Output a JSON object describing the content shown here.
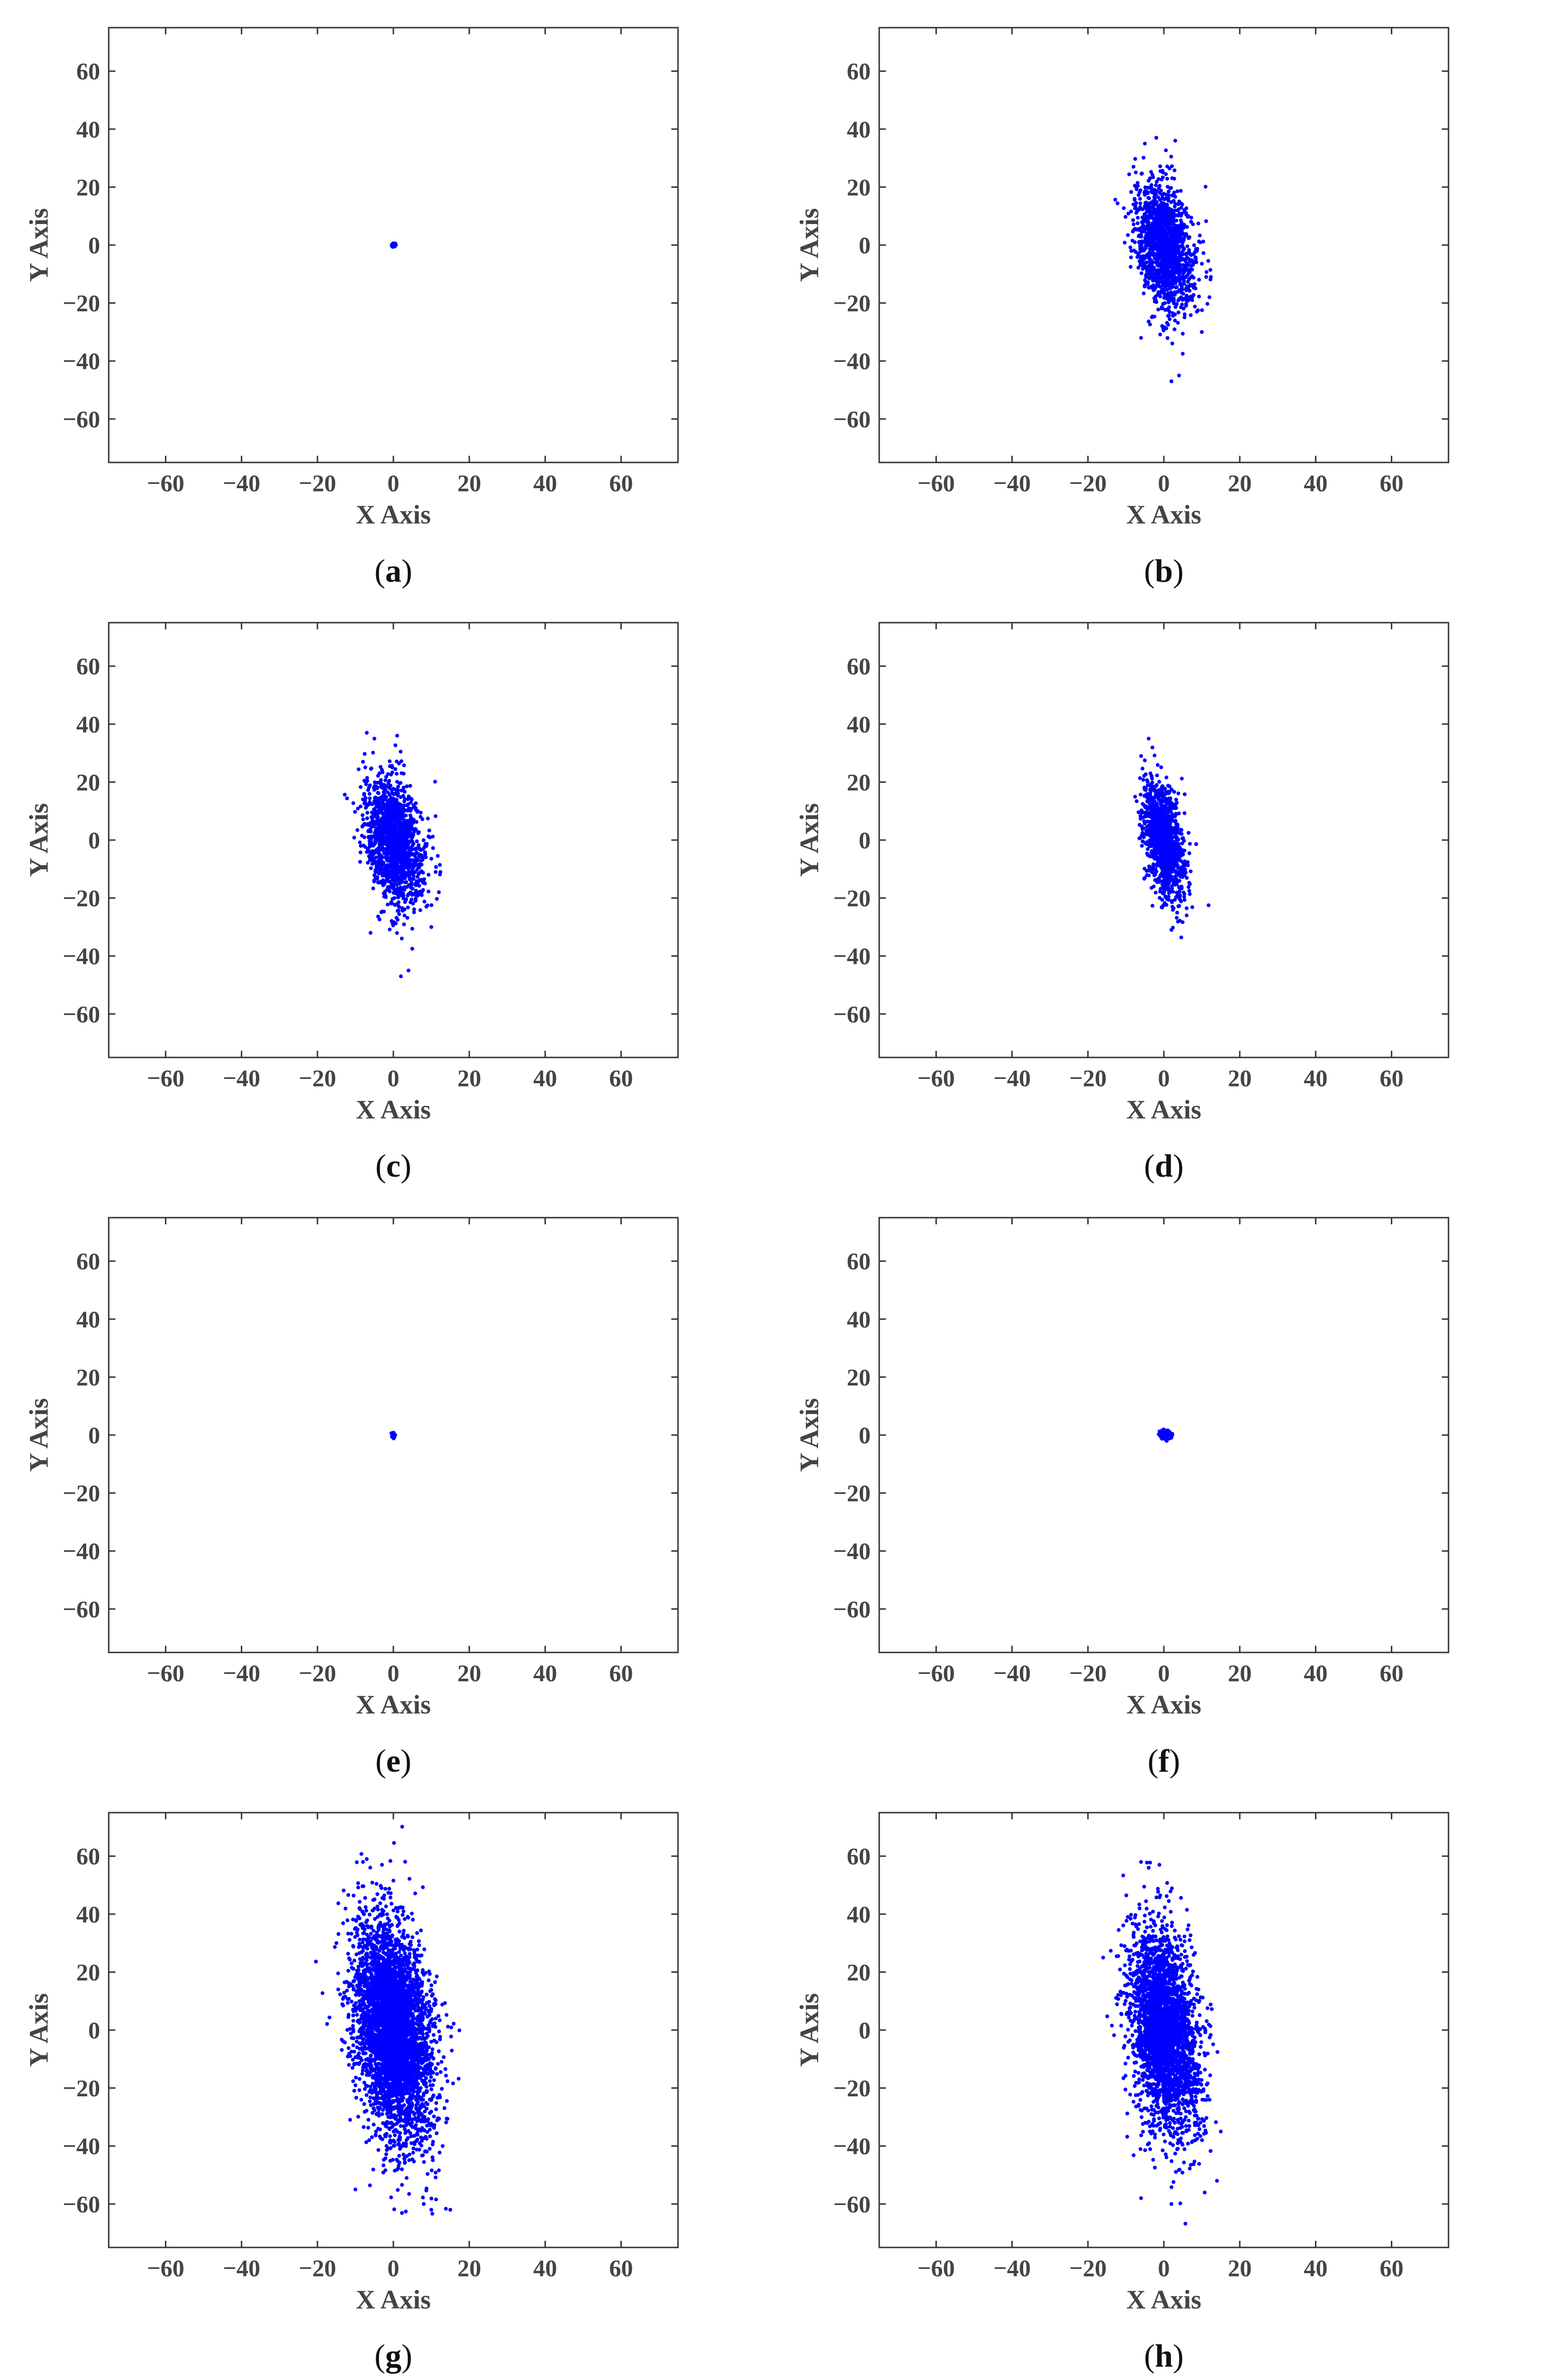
{
  "figure": {
    "marker_color": "#0000ff",
    "axis_color": "#333333",
    "label_color": "#444444"
  },
  "chart_data": [
    {
      "id": "a",
      "caption": "(a)",
      "type": "scatter",
      "xlabel": "X Axis",
      "ylabel": "Y Axis",
      "xlim": [
        -75,
        75
      ],
      "ylim": [
        -75,
        75
      ],
      "xticks": [
        -60,
        -40,
        -20,
        0,
        20,
        40,
        60
      ],
      "yticks": [
        -60,
        -40,
        -20,
        0,
        20,
        40,
        60
      ],
      "cloud": {
        "points": 80,
        "sd_x": 0.25,
        "sd_y": 0.25,
        "corr": 0.0,
        "center": [
          0,
          0
        ],
        "seed": 11
      },
      "outliers": []
    },
    {
      "id": "b",
      "caption": "(b)",
      "type": "scatter",
      "xlabel": "X Axis",
      "ylabel": "Y Axis",
      "xlim": [
        -75,
        75
      ],
      "ylim": [
        -75,
        75
      ],
      "xticks": [
        -60,
        -40,
        -20,
        0,
        20,
        40,
        60
      ],
      "yticks": [
        -60,
        -40,
        -20,
        0,
        20,
        40,
        60
      ],
      "cloud": {
        "points": 1500,
        "sd_x": 3.8,
        "sd_y": 11,
        "corr": -0.3,
        "center": [
          0,
          0
        ],
        "seed": 21
      },
      "outliers": [
        [
          -2,
          37
        ],
        [
          -5,
          35
        ],
        [
          3,
          36
        ],
        [
          -8,
          27
        ],
        [
          12,
          -18
        ],
        [
          2,
          -47
        ],
        [
          4,
          -45
        ],
        [
          -6,
          -32
        ],
        [
          10,
          -30
        ]
      ]
    },
    {
      "id": "c",
      "caption": "(c)",
      "type": "scatter",
      "xlabel": "X Axis",
      "ylabel": "Y Axis",
      "xlim": [
        -75,
        75
      ],
      "ylim": [
        -75,
        75
      ],
      "xticks": [
        -60,
        -40,
        -20,
        0,
        20,
        40,
        60
      ],
      "yticks": [
        -60,
        -40,
        -20,
        0,
        20,
        40,
        60
      ],
      "cloud": {
        "points": 1500,
        "sd_x": 3.8,
        "sd_y": 11,
        "corr": -0.3,
        "center": [
          0,
          0
        ],
        "seed": 21
      },
      "outliers": [
        [
          -7,
          37
        ],
        [
          -5,
          35
        ],
        [
          1,
          36
        ],
        [
          -8,
          27
        ],
        [
          12,
          -18
        ],
        [
          2,
          -47
        ],
        [
          4,
          -45
        ],
        [
          -6,
          -32
        ],
        [
          10,
          -30
        ]
      ]
    },
    {
      "id": "d",
      "caption": "(d)",
      "type": "scatter",
      "xlabel": "X Axis",
      "ylabel": "Y Axis",
      "xlim": [
        -75,
        75
      ],
      "ylim": [
        -75,
        75
      ],
      "xticks": [
        -60,
        -40,
        -20,
        0,
        20,
        40,
        60
      ],
      "yticks": [
        -60,
        -40,
        -20,
        0,
        20,
        40,
        60
      ],
      "cloud": {
        "points": 1300,
        "sd_x": 2.6,
        "sd_y": 10,
        "corr": -0.45,
        "center": [
          0,
          0
        ],
        "seed": 31
      },
      "outliers": [
        [
          -4,
          35
        ],
        [
          -6,
          29
        ],
        [
          2,
          -31
        ],
        [
          6,
          -26
        ]
      ]
    },
    {
      "id": "e",
      "caption": "(e)",
      "type": "scatter",
      "xlabel": "X Axis",
      "ylabel": "Y Axis",
      "xlim": [
        -75,
        75
      ],
      "ylim": [
        -75,
        75
      ],
      "xticks": [
        -60,
        -40,
        -20,
        0,
        20,
        40,
        60
      ],
      "yticks": [
        -60,
        -40,
        -20,
        0,
        20,
        40,
        60
      ],
      "cloud": {
        "points": 60,
        "sd_x": 0.2,
        "sd_y": 0.5,
        "corr": 0.0,
        "center": [
          0,
          0
        ],
        "seed": 41
      },
      "outliers": []
    },
    {
      "id": "f",
      "caption": "(f)",
      "type": "scatter",
      "xlabel": "X Axis",
      "ylabel": "Y Axis",
      "xlim": [
        -75,
        75
      ],
      "ylim": [
        -75,
        75
      ],
      "xticks": [
        -60,
        -40,
        -20,
        0,
        20,
        40,
        60
      ],
      "yticks": [
        -60,
        -40,
        -20,
        0,
        20,
        40,
        60
      ],
      "cloud": {
        "points": 150,
        "sd_x": 0.8,
        "sd_y": 0.8,
        "corr": 0.0,
        "center": [
          0.5,
          0
        ],
        "seed": 51
      },
      "outliers": []
    },
    {
      "id": "g",
      "caption": "(g)",
      "type": "scatter",
      "xlabel": "X Axis",
      "ylabel": "Y Axis",
      "xlim": [
        -75,
        75
      ],
      "ylim": [
        -75,
        75
      ],
      "xticks": [
        -60,
        -40,
        -20,
        0,
        20,
        40,
        60
      ],
      "yticks": [
        -60,
        -40,
        -20,
        0,
        20,
        40,
        60
      ],
      "cloud": {
        "points": 4000,
        "sd_x": 5,
        "sd_y": 19,
        "corr": -0.3,
        "center": [
          0,
          0
        ],
        "seed": 61
      },
      "outliers": [
        [
          -7,
          59
        ],
        [
          -8,
          58
        ],
        [
          -3,
          57
        ],
        [
          -15,
          30
        ],
        [
          15,
          -62
        ],
        [
          10,
          -62
        ],
        [
          8,
          -60
        ],
        [
          -10,
          -55
        ],
        [
          13,
          -40
        ]
      ]
    },
    {
      "id": "h",
      "caption": "(h)",
      "type": "scatter",
      "xlabel": "X Axis",
      "ylabel": "Y Axis",
      "xlim": [
        -75,
        75
      ],
      "ylim": [
        -75,
        75
      ],
      "xticks": [
        -60,
        -40,
        -20,
        0,
        20,
        40,
        60
      ],
      "yticks": [
        -60,
        -40,
        -20,
        0,
        20,
        40,
        60
      ],
      "cloud": {
        "points": 3000,
        "sd_x": 4.5,
        "sd_y": 17,
        "corr": -0.3,
        "center": [
          0,
          0
        ],
        "seed": 71
      },
      "outliers": [
        [
          -6,
          58
        ],
        [
          -4,
          56
        ],
        [
          -16,
          25
        ],
        [
          15,
          -35
        ],
        [
          14,
          -52
        ],
        [
          2,
          -60
        ],
        [
          -6,
          -58
        ]
      ]
    }
  ]
}
